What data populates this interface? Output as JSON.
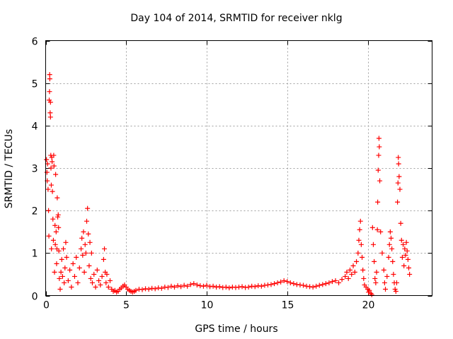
{
  "chart_data": {
    "type": "scatter",
    "title": "Day 104 of 2014, SRMTID for receiver nklg",
    "xlabel": "GPS time / hours",
    "ylabel": "SRMTID / TECUs",
    "xlim": [
      0,
      24
    ],
    "ylim": [
      0,
      6
    ],
    "xticks": [
      0,
      5,
      10,
      15,
      20
    ],
    "yticks": [
      0,
      1,
      2,
      3,
      4,
      5,
      6
    ],
    "grid": true,
    "marker": "+",
    "marker_color": "#ff0000",
    "series": [
      {
        "name": "SRMTID",
        "points": [
          [
            0.05,
            3.2
          ],
          [
            0.08,
            2.9
          ],
          [
            0.1,
            2.7
          ],
          [
            0.12,
            3.1
          ],
          [
            0.15,
            2.5
          ],
          [
            0.18,
            2.0
          ],
          [
            0.2,
            1.4
          ],
          [
            0.22,
            4.6
          ],
          [
            0.24,
            4.8
          ],
          [
            0.25,
            5.2
          ],
          [
            0.26,
            5.1
          ],
          [
            0.28,
            4.3
          ],
          [
            0.3,
            4.2
          ],
          [
            0.3,
            4.55
          ],
          [
            0.32,
            3.3
          ],
          [
            0.33,
            3.0
          ],
          [
            0.35,
            2.6
          ],
          [
            0.36,
            1.1
          ],
          [
            0.38,
            3.25
          ],
          [
            0.4,
            3.15
          ],
          [
            0.42,
            2.45
          ],
          [
            0.45,
            1.8
          ],
          [
            0.48,
            1.3
          ],
          [
            0.5,
            3.3
          ],
          [
            0.52,
            3.05
          ],
          [
            0.55,
            0.55
          ],
          [
            0.58,
            1.65
          ],
          [
            0.6,
            1.2
          ],
          [
            0.62,
            2.85
          ],
          [
            0.65,
            1.5
          ],
          [
            0.68,
            0.75
          ],
          [
            0.7,
            1.1
          ],
          [
            0.72,
            2.3
          ],
          [
            0.75,
            1.85
          ],
          [
            0.78,
            1.9
          ],
          [
            0.8,
            1.6
          ],
          [
            0.82,
            1.05
          ],
          [
            0.85,
            0.4
          ],
          [
            0.9,
            0.15
          ],
          [
            0.95,
            0.55
          ],
          [
            1.0,
            0.85
          ],
          [
            1.05,
            0.45
          ],
          [
            1.1,
            1.1
          ],
          [
            1.15,
            0.3
          ],
          [
            1.2,
            0.65
          ],
          [
            1.25,
            1.25
          ],
          [
            1.3,
            0.9
          ],
          [
            1.4,
            0.35
          ],
          [
            1.5,
            0.6
          ],
          [
            1.6,
            0.2
          ],
          [
            1.7,
            0.75
          ],
          [
            1.8,
            0.45
          ],
          [
            1.9,
            0.9
          ],
          [
            2.0,
            0.3
          ],
          [
            2.1,
            0.65
          ],
          [
            2.2,
            1.1
          ],
          [
            2.25,
            1.35
          ],
          [
            2.3,
            0.95
          ],
          [
            2.35,
            1.5
          ],
          [
            2.4,
            0.55
          ],
          [
            2.45,
            1.2
          ],
          [
            2.5,
            1.0
          ],
          [
            2.55,
            1.75
          ],
          [
            2.6,
            2.05
          ],
          [
            2.65,
            1.45
          ],
          [
            2.7,
            0.7
          ],
          [
            2.75,
            1.25
          ],
          [
            2.8,
            0.4
          ],
          [
            2.85,
            1.0
          ],
          [
            2.9,
            0.3
          ],
          [
            3.0,
            0.5
          ],
          [
            3.1,
            0.2
          ],
          [
            3.2,
            0.6
          ],
          [
            3.3,
            0.35
          ],
          [
            3.4,
            0.25
          ],
          [
            3.5,
            0.45
          ],
          [
            3.6,
            0.85
          ],
          [
            3.65,
            1.1
          ],
          [
            3.7,
            0.55
          ],
          [
            3.75,
            0.3
          ],
          [
            3.8,
            0.5
          ],
          [
            3.9,
            0.2
          ],
          [
            4.0,
            0.35
          ],
          [
            4.1,
            0.15
          ],
          [
            4.2,
            0.1
          ],
          [
            4.3,
            0.12
          ],
          [
            4.4,
            0.08
          ],
          [
            4.5,
            0.1
          ],
          [
            4.6,
            0.15
          ],
          [
            4.7,
            0.18
          ],
          [
            4.8,
            0.22
          ],
          [
            4.9,
            0.25
          ],
          [
            5.0,
            0.2
          ],
          [
            5.1,
            0.15
          ],
          [
            5.2,
            0.12
          ],
          [
            5.3,
            0.1
          ],
          [
            5.4,
            0.08
          ],
          [
            5.5,
            0.1
          ],
          [
            5.6,
            0.12
          ],
          [
            5.8,
            0.15
          ],
          [
            6.0,
            0.14
          ],
          [
            6.2,
            0.16
          ],
          [
            6.4,
            0.15
          ],
          [
            6.6,
            0.17
          ],
          [
            6.8,
            0.16
          ],
          [
            7.0,
            0.18
          ],
          [
            7.2,
            0.17
          ],
          [
            7.4,
            0.2
          ],
          [
            7.6,
            0.19
          ],
          [
            7.8,
            0.22
          ],
          [
            8.0,
            0.2
          ],
          [
            8.2,
            0.23
          ],
          [
            8.4,
            0.21
          ],
          [
            8.6,
            0.24
          ],
          [
            8.8,
            0.22
          ],
          [
            9.0,
            0.26
          ],
          [
            9.2,
            0.28
          ],
          [
            9.4,
            0.25
          ],
          [
            9.6,
            0.23
          ],
          [
            9.8,
            0.22
          ],
          [
            10.0,
            0.24
          ],
          [
            10.2,
            0.21
          ],
          [
            10.4,
            0.22
          ],
          [
            10.6,
            0.2
          ],
          [
            10.8,
            0.21
          ],
          [
            11.0,
            0.19
          ],
          [
            11.2,
            0.2
          ],
          [
            11.4,
            0.18
          ],
          [
            11.6,
            0.2
          ],
          [
            11.8,
            0.19
          ],
          [
            12.0,
            0.2
          ],
          [
            12.2,
            0.21
          ],
          [
            12.4,
            0.19
          ],
          [
            12.6,
            0.2
          ],
          [
            12.8,
            0.22
          ],
          [
            13.0,
            0.21
          ],
          [
            13.2,
            0.23
          ],
          [
            13.4,
            0.22
          ],
          [
            13.6,
            0.24
          ],
          [
            13.8,
            0.25
          ],
          [
            14.0,
            0.26
          ],
          [
            14.2,
            0.28
          ],
          [
            14.4,
            0.3
          ],
          [
            14.6,
            0.32
          ],
          [
            14.8,
            0.35
          ],
          [
            15.0,
            0.33
          ],
          [
            15.2,
            0.3
          ],
          [
            15.4,
            0.28
          ],
          [
            15.6,
            0.26
          ],
          [
            15.8,
            0.25
          ],
          [
            16.0,
            0.24
          ],
          [
            16.2,
            0.22
          ],
          [
            16.4,
            0.21
          ],
          [
            16.6,
            0.2
          ],
          [
            16.8,
            0.22
          ],
          [
            17.0,
            0.24
          ],
          [
            17.2,
            0.26
          ],
          [
            17.4,
            0.28
          ],
          [
            17.6,
            0.3
          ],
          [
            17.8,
            0.33
          ],
          [
            18.0,
            0.35
          ],
          [
            18.2,
            0.3
          ],
          [
            18.4,
            0.38
          ],
          [
            18.6,
            0.45
          ],
          [
            18.7,
            0.55
          ],
          [
            18.8,
            0.4
          ],
          [
            18.9,
            0.6
          ],
          [
            19.0,
            0.5
          ],
          [
            19.1,
            0.7
          ],
          [
            19.2,
            0.55
          ],
          [
            19.3,
            0.8
          ],
          [
            19.4,
            1.0
          ],
          [
            19.45,
            1.3
          ],
          [
            19.5,
            1.55
          ],
          [
            19.55,
            1.75
          ],
          [
            19.6,
            1.2
          ],
          [
            19.65,
            0.9
          ],
          [
            19.7,
            0.6
          ],
          [
            19.75,
            0.4
          ],
          [
            19.8,
            0.25
          ],
          [
            19.9,
            0.2
          ],
          [
            20.0,
            0.15
          ],
          [
            20.05,
            0.08
          ],
          [
            20.1,
            0.12
          ],
          [
            20.2,
            0.05
          ],
          [
            20.25,
            0.02
          ],
          [
            20.3,
            1.6
          ],
          [
            20.35,
            1.2
          ],
          [
            20.4,
            0.8
          ],
          [
            20.45,
            0.4
          ],
          [
            20.5,
            0.3
          ],
          [
            20.55,
            0.55
          ],
          [
            20.6,
            1.55
          ],
          [
            20.62,
            2.2
          ],
          [
            20.65,
            2.95
          ],
          [
            20.68,
            3.3
          ],
          [
            20.7,
            3.7
          ],
          [
            20.72,
            3.5
          ],
          [
            20.75,
            2.7
          ],
          [
            20.8,
            1.5
          ],
          [
            20.9,
            1.0
          ],
          [
            21.0,
            0.6
          ],
          [
            21.05,
            0.3
          ],
          [
            21.1,
            0.15
          ],
          [
            21.2,
            0.45
          ],
          [
            21.3,
            0.9
          ],
          [
            21.35,
            1.2
          ],
          [
            21.4,
            1.5
          ],
          [
            21.45,
            1.35
          ],
          [
            21.5,
            1.1
          ],
          [
            21.55,
            0.8
          ],
          [
            21.6,
            0.5
          ],
          [
            21.65,
            0.3
          ],
          [
            21.7,
            0.15
          ],
          [
            21.75,
            0.1
          ],
          [
            21.8,
            0.3
          ],
          [
            21.85,
            2.2
          ],
          [
            21.88,
            2.65
          ],
          [
            21.9,
            3.25
          ],
          [
            21.92,
            3.1
          ],
          [
            21.95,
            2.8
          ],
          [
            22.0,
            2.5
          ],
          [
            22.05,
            1.7
          ],
          [
            22.1,
            1.3
          ],
          [
            22.15,
            0.9
          ],
          [
            22.2,
            1.2
          ],
          [
            22.25,
            0.7
          ],
          [
            22.3,
            1.1
          ],
          [
            22.35,
            0.95
          ],
          [
            22.4,
            1.25
          ],
          [
            22.45,
            1.05
          ],
          [
            22.5,
            0.85
          ],
          [
            22.55,
            0.65
          ],
          [
            22.6,
            0.5
          ]
        ]
      }
    ]
  }
}
